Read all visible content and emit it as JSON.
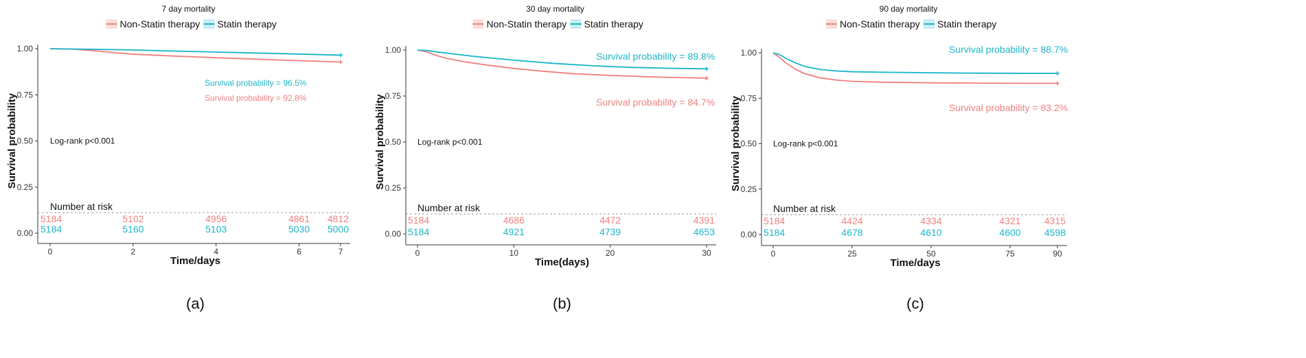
{
  "colors": {
    "non_statin": "#F08080",
    "statin": "#1CB6C8",
    "axis": "#333333",
    "dash": "#999999"
  },
  "chart_data": [
    {
      "type": "line",
      "panel_label": "(a)",
      "title": "7 day mortality",
      "legend": [
        "Non-Statin therapy",
        "Statin therapy"
      ],
      "legend_position": "top",
      "xlabel": "Time/days",
      "ylabel": "Survival probability",
      "xlim": [
        0,
        7
      ],
      "ylim": [
        0,
        1
      ],
      "x_ticks": [
        "0",
        "2",
        "4",
        "6",
        "7"
      ],
      "x_tick_values": [
        0,
        2,
        4,
        6,
        7
      ],
      "y_ticks": [
        "0.00",
        "0.25",
        "0.50",
        "0.75",
        "1.00"
      ],
      "y_tick_values": [
        0,
        0.25,
        0.5,
        0.75,
        1.0
      ],
      "grid": false,
      "logrank": "Log-rank p<0.001",
      "risk_title": "Number at risk",
      "risk_x": [
        0,
        2,
        4,
        6,
        7
      ],
      "series": [
        {
          "name": "Non-Statin therapy",
          "x": [
            0,
            0.5,
            1,
            1.5,
            2,
            3,
            4,
            5,
            6,
            7
          ],
          "values": [
            1.0,
            0.998,
            0.99,
            0.98,
            0.97,
            0.96,
            0.951,
            0.943,
            0.935,
            0.928
          ],
          "annotation": "Survival probability = 92.8%",
          "risk": [
            "5184",
            "5102",
            "4956",
            "4861",
            "4812"
          ]
        },
        {
          "name": "Statin therapy",
          "x": [
            0,
            1,
            2,
            3,
            4,
            5,
            6,
            7
          ],
          "values": [
            1.0,
            0.997,
            0.993,
            0.987,
            0.982,
            0.976,
            0.971,
            0.965
          ],
          "annotation": "Survival probability = 96.5%",
          "risk": [
            "5184",
            "5160",
            "5103",
            "5030",
            "5000"
          ]
        }
      ]
    },
    {
      "type": "line",
      "panel_label": "(b)",
      "title": "30 day mortality",
      "legend": [
        "Non-Statin therapy",
        "Statin therapy"
      ],
      "legend_position": "top",
      "xlabel": "Time(days)",
      "ylabel": "Survival probability",
      "xlim": [
        0,
        30
      ],
      "ylim": [
        0,
        1
      ],
      "x_ticks": [
        "0",
        "10",
        "20",
        "30"
      ],
      "x_tick_values": [
        0,
        10,
        20,
        30
      ],
      "y_ticks": [
        "0.00",
        "0.25",
        "0.50",
        "0.75",
        "1.00"
      ],
      "y_tick_values": [
        0,
        0.25,
        0.5,
        0.75,
        1.0
      ],
      "grid": false,
      "logrank": "Log-rank p<0.001",
      "risk_title": "Number at risk",
      "risk_x": [
        0,
        10,
        20,
        30
      ],
      "series": [
        {
          "name": "Non-Statin therapy",
          "x": [
            0,
            1,
            2,
            3,
            5,
            7,
            10,
            13,
            16,
            20,
            25,
            30
          ],
          "values": [
            1.0,
            0.99,
            0.97,
            0.955,
            0.935,
            0.92,
            0.9,
            0.885,
            0.872,
            0.862,
            0.853,
            0.847
          ],
          "annotation": "Survival probability = 84.7%",
          "risk": [
            "5184",
            "4686",
            "4472",
            "4391"
          ]
        },
        {
          "name": "Statin therapy",
          "x": [
            0,
            1,
            2,
            4,
            6,
            10,
            14,
            18,
            22,
            26,
            30
          ],
          "values": [
            1.0,
            0.998,
            0.99,
            0.977,
            0.965,
            0.945,
            0.928,
            0.915,
            0.906,
            0.901,
            0.898
          ],
          "annotation": "Survival probability = 89.8%",
          "risk": [
            "5184",
            "4921",
            "4739",
            "4653"
          ]
        }
      ]
    },
    {
      "type": "line",
      "panel_label": "(c)",
      "title": "90 day mortality",
      "legend": [
        "Non-Statin therapy",
        "Statin therapy"
      ],
      "legend_position": "top",
      "xlabel": "Time/days",
      "ylabel": "Survival probability",
      "xlim": [
        0,
        90
      ],
      "ylim": [
        0,
        1
      ],
      "x_ticks": [
        "0",
        "25",
        "50",
        "75",
        "90"
      ],
      "x_tick_values": [
        0,
        25,
        50,
        75,
        90
      ],
      "y_ticks": [
        "0.00",
        "0.25",
        "0.50",
        "0.75",
        "1.00"
      ],
      "y_tick_values": [
        0,
        0.25,
        0.5,
        0.75,
        1.0
      ],
      "grid": false,
      "logrank": "Log-rank p<0.001",
      "risk_title": "Number at risk",
      "risk_x": [
        0,
        25,
        50,
        75,
        90
      ],
      "series": [
        {
          "name": "Non-Statin therapy",
          "x": [
            0,
            2,
            4,
            7,
            10,
            15,
            20,
            25,
            35,
            50,
            65,
            80,
            90
          ],
          "values": [
            1.0,
            0.975,
            0.945,
            0.91,
            0.885,
            0.862,
            0.85,
            0.843,
            0.838,
            0.835,
            0.833,
            0.832,
            0.832
          ],
          "annotation": "Survival probability = 83.2%",
          "risk": [
            "5184",
            "4424",
            "4334",
            "4321",
            "4315"
          ]
        },
        {
          "name": "Statin therapy",
          "x": [
            0,
            2,
            4,
            7,
            10,
            15,
            20,
            25,
            35,
            50,
            65,
            80,
            90
          ],
          "values": [
            1.0,
            0.99,
            0.97,
            0.945,
            0.925,
            0.908,
            0.9,
            0.896,
            0.893,
            0.89,
            0.888,
            0.887,
            0.887
          ],
          "annotation": "Survival probability = 88.7%",
          "risk": [
            "5184",
            "4678",
            "4610",
            "4600",
            "4598"
          ]
        }
      ]
    }
  ]
}
